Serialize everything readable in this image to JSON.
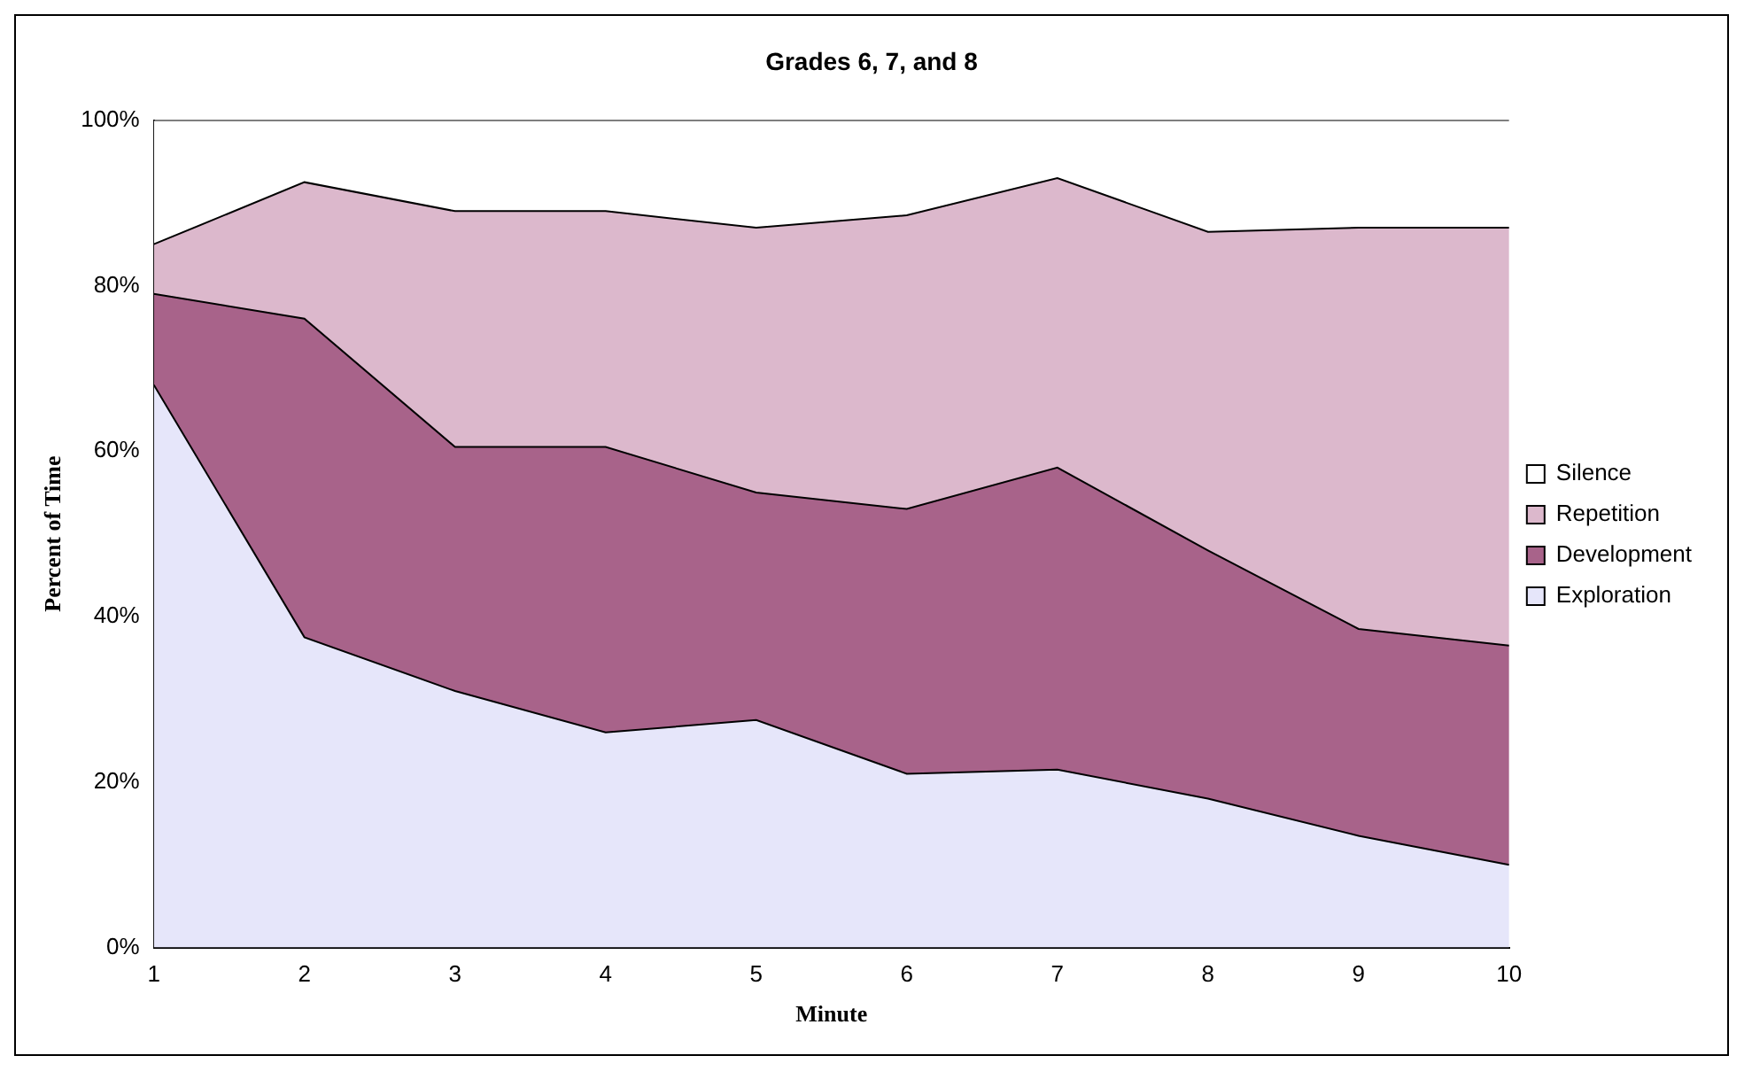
{
  "chart_data": {
    "type": "area",
    "title": "Grades 6, 7, and 8",
    "xlabel": "Minute",
    "ylabel": "Percent of Time",
    "stacked": true,
    "legend": "right",
    "marker": "none",
    "x": [
      1,
      2,
      3,
      4,
      5,
      6,
      7,
      8,
      9,
      10
    ],
    "xlim": [
      1,
      10
    ],
    "xticks": [
      1,
      2,
      3,
      4,
      5,
      6,
      7,
      8,
      9,
      10
    ],
    "ylim": [
      0,
      100
    ],
    "yticks": [
      {
        "value": 0,
        "label": "0%"
      },
      {
        "value": 20,
        "label": "20%"
      },
      {
        "value": 40,
        "label": "40%"
      },
      {
        "value": 60,
        "label": "60%"
      },
      {
        "value": 80,
        "label": "80%"
      },
      {
        "value": 100,
        "label": "100%"
      }
    ],
    "series": [
      {
        "name": "Exploration",
        "color": "#e6e6fa",
        "values": [
          68,
          37.5,
          31,
          26,
          27.5,
          21,
          21.5,
          18,
          13.5,
          10
        ]
      },
      {
        "name": "Development",
        "color": "#a8638a",
        "values": [
          11,
          38.5,
          29.5,
          34.5,
          27.5,
          32,
          36.5,
          30,
          25,
          26.5
        ]
      },
      {
        "name": "Repetition",
        "color": "#dcb8cc",
        "values": [
          6,
          16.5,
          28.5,
          28.5,
          32,
          35.5,
          35,
          38.5,
          48.5,
          50.5
        ]
      },
      {
        "name": "Silence",
        "color": "#ffffff",
        "values": [
          15,
          7.5,
          11,
          11,
          13,
          11.5,
          7,
          13.5,
          13,
          13
        ]
      }
    ]
  }
}
